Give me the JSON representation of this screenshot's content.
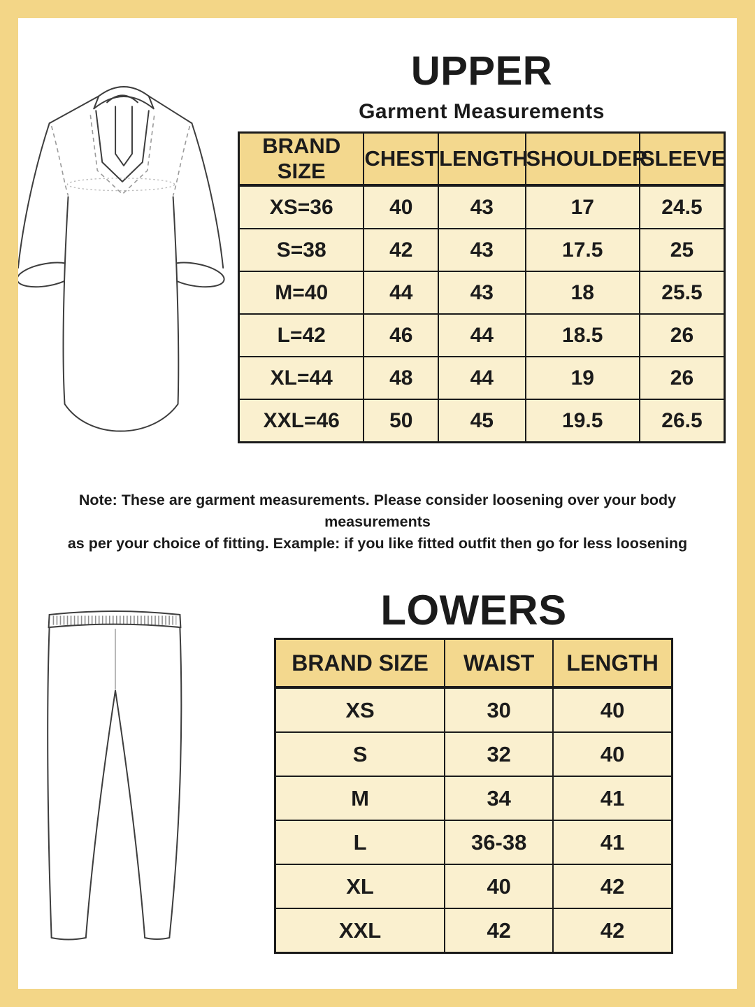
{
  "upper": {
    "title": "UPPER",
    "subtitle": "Garment Measurements",
    "table": {
      "headers": [
        "BRAND SIZE",
        "CHEST",
        "LENGTH",
        "SHOULDER",
        "SLEEVE"
      ],
      "rows": [
        [
          "XS=36",
          "40",
          "43",
          "17",
          "24.5"
        ],
        [
          "S=38",
          "42",
          "43",
          "17.5",
          "25"
        ],
        [
          "M=40",
          "44",
          "43",
          "18",
          "25.5"
        ],
        [
          "L=42",
          "46",
          "44",
          "18.5",
          "26"
        ],
        [
          "XL=44",
          "48",
          "44",
          "19",
          "26"
        ],
        [
          "XXL=46",
          "50",
          "45",
          "19.5",
          "26.5"
        ]
      ]
    },
    "note": {
      "line1": "Note: These are garment measurements. Please consider loosening over your body measurements",
      "line2": "as per your choice of fitting. Example: if you like fitted outfit then go for less loosening"
    }
  },
  "lowers": {
    "title": "LOWERS",
    "table": {
      "headers": [
        "BRAND SIZE",
        "WAIST",
        "LENGTH"
      ],
      "rows": [
        [
          "XS",
          "30",
          "40"
        ],
        [
          "S",
          "32",
          "40"
        ],
        [
          "M",
          "34",
          "41"
        ],
        [
          "L",
          "36-38",
          "41"
        ],
        [
          "XL",
          "40",
          "42"
        ],
        [
          "XXL",
          "42",
          "42"
        ]
      ]
    }
  },
  "illustrations": {
    "upper": "kurta-line-drawing",
    "lowers": "leggings-line-drawing"
  },
  "colors": {
    "frame": "#f3d687",
    "table_header_bg": "#f3d88e",
    "table_cell_bg": "#faf0cf",
    "line": "#1b1b1b",
    "drawing_stroke": "#3d3d3d",
    "dashed_seam": "#9a9a9a"
  }
}
